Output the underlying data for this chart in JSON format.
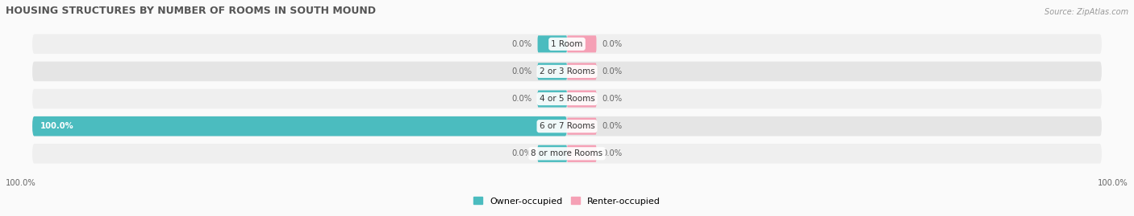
{
  "title": "HOUSING STRUCTURES BY NUMBER OF ROOMS IN SOUTH MOUND",
  "source": "Source: ZipAtlas.com",
  "categories": [
    "1 Room",
    "2 or 3 Rooms",
    "4 or 5 Rooms",
    "6 or 7 Rooms",
    "8 or more Rooms"
  ],
  "owner_values": [
    0.0,
    0.0,
    0.0,
    100.0,
    0.0
  ],
  "renter_values": [
    0.0,
    0.0,
    0.0,
    0.0,
    0.0
  ],
  "owner_color": "#4BBCBF",
  "renter_color": "#F5A0B5",
  "row_bg_light": "#EFEFEF",
  "row_bg_dark": "#E5E5E5",
  "title_color": "#555555",
  "label_color": "#666666",
  "source_color": "#999999",
  "legend_owner": "Owner-occupied",
  "legend_renter": "Renter-occupied",
  "stub_size": 5.5
}
